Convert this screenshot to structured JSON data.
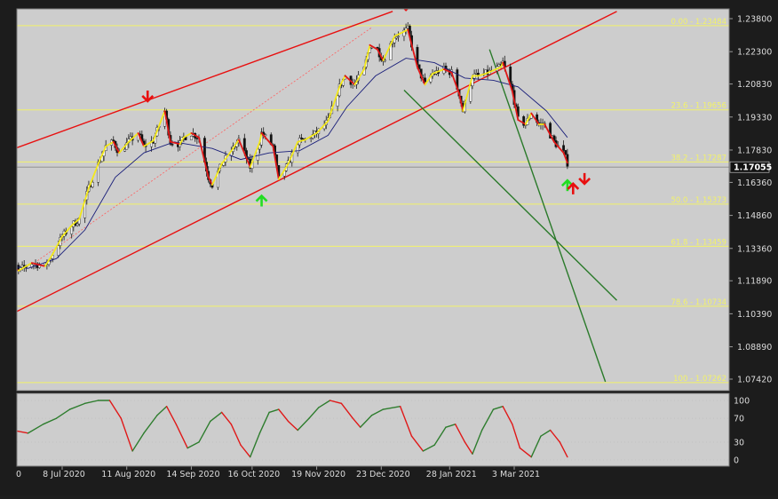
{
  "chart_data": [
    {
      "type": "candlestick",
      "symbol_price_label": "1.17055",
      "last_price": 1.17055,
      "y_ticks": [
        "1.23800",
        "1.22300",
        "1.20830",
        "1.19330",
        "1.17830",
        "1.16360",
        "1.14860",
        "1.13360",
        "1.11890",
        "1.10390",
        "1.08890",
        "1.07420"
      ],
      "x_ticks": [
        {
          "label": "0",
          "date": "2020-06-05"
        },
        {
          "label": "8 Jul 2020",
          "date": "2020-07-08"
        },
        {
          "label": "11 Aug 2020",
          "date": "2020-08-11"
        },
        {
          "label": "14 Sep 2020",
          "date": "2020-09-14"
        },
        {
          "label": "16 Oct 2020",
          "date": "2020-10-16"
        },
        {
          "label": "19 Nov 2020",
          "date": "2020-11-19"
        },
        {
          "label": "23 Dec 2020",
          "date": "2020-12-23"
        },
        {
          "label": "28 Jan 2021",
          "date": "2021-01-28"
        },
        {
          "label": "3 Mar 2021",
          "date": "2021-03-03"
        }
      ],
      "fib_levels": [
        {
          "label": "0.00 - 1.23484",
          "value": 1.23484
        },
        {
          "label": "23.6 - 1.19656",
          "value": 1.19656
        },
        {
          "label": "38.2 - 1.17287",
          "value": 1.17287
        },
        {
          "label": "50.0 - 1.15373",
          "value": 1.15373
        },
        {
          "label": "61.8 - 1.13459",
          "value": 1.13459
        },
        {
          "label": "78.6 - 1.10734",
          "value": 1.10734
        },
        {
          "label": "100 - 1.07262",
          "value": 1.07262
        }
      ],
      "trend_lines": [
        {
          "color": "#e81010",
          "points": [
            [
              "2020-06-05",
              1.1765
            ],
            [
              "2020-12-29",
              1.2413
            ]
          ]
        },
        {
          "color": "#e81010",
          "points": [
            [
              "2020-06-05",
              1.101
            ],
            [
              "2021-04-26",
              1.2413
            ]
          ]
        },
        {
          "color": "#2a7a2a",
          "points": [
            [
              "2021-02-18",
              1.224
            ],
            [
              "2021-04-20",
              1.073
            ]
          ]
        },
        {
          "color": "#2a7a2a",
          "points": [
            [
              "2021-01-04",
              1.2055
            ],
            [
              "2021-04-26",
              1.11
            ]
          ]
        }
      ],
      "dashed_line": {
        "color": "#ff6060",
        "points": [
          [
            "2020-06-25",
            1.128
          ],
          [
            "2020-12-18",
            1.234
          ]
        ]
      },
      "arrows": [
        {
          "direction": "down",
          "color": "#e81010",
          "date": "2020-08-22",
          "price": 1.2005
        },
        {
          "direction": "down",
          "color": "#e81010",
          "date": "2021-01-05",
          "price": 1.242
        },
        {
          "direction": "up",
          "color": "#22dd22",
          "date": "2020-10-21",
          "price": 1.1575
        },
        {
          "direction": "up",
          "color": "#22dd22",
          "date": "2021-03-31",
          "price": 1.1645
        },
        {
          "direction": "up",
          "color": "#e81010",
          "date": "2021-04-03",
          "price": 1.163
        },
        {
          "direction": "down",
          "color": "#e81010",
          "date": "2021-04-09",
          "price": 1.163
        }
      ],
      "price_path": [
        [
          "2020-06-05",
          1.127
        ],
        [
          "2020-06-10",
          1.1265
        ],
        [
          "2020-06-15",
          1.1235
        ],
        [
          "2020-06-22",
          1.127
        ],
        [
          "2020-06-29",
          1.1255
        ],
        [
          "2020-07-03",
          1.131
        ],
        [
          "2020-07-08",
          1.139
        ],
        [
          "2020-07-13",
          1.144
        ],
        [
          "2020-07-17",
          1.147
        ],
        [
          "2020-07-22",
          1.161
        ],
        [
          "2020-07-27",
          1.172
        ],
        [
          "2020-07-31",
          1.18
        ],
        [
          "2020-08-04",
          1.182
        ],
        [
          "2020-08-07",
          1.177
        ],
        [
          "2020-08-12",
          1.182
        ],
        [
          "2020-08-17",
          1.186
        ],
        [
          "2020-08-20",
          1.18
        ],
        [
          "2020-08-25",
          1.1825
        ],
        [
          "2020-08-31",
          1.196
        ],
        [
          "2020-09-03",
          1.182
        ],
        [
          "2020-09-08",
          1.181
        ],
        [
          "2020-09-10",
          1.184
        ],
        [
          "2020-09-14",
          1.186
        ],
        [
          "2020-09-18",
          1.184
        ],
        [
          "2020-09-23",
          1.166
        ],
        [
          "2020-09-25",
          1.1625
        ],
        [
          "2020-09-30",
          1.172
        ],
        [
          "2020-10-06",
          1.179
        ],
        [
          "2020-10-09",
          1.183
        ],
        [
          "2020-10-15",
          1.1705
        ],
        [
          "2020-10-20",
          1.182
        ],
        [
          "2020-10-21",
          1.186
        ],
        [
          "2020-10-27",
          1.18
        ],
        [
          "2020-10-30",
          1.165
        ],
        [
          "2020-11-04",
          1.172
        ],
        [
          "2020-11-09",
          1.182
        ],
        [
          "2020-11-13",
          1.183
        ],
        [
          "2020-11-19",
          1.186
        ],
        [
          "2020-11-25",
          1.1915
        ],
        [
          "2020-12-01",
          1.207
        ],
        [
          "2020-12-04",
          1.212
        ],
        [
          "2020-12-09",
          1.208
        ],
        [
          "2020-12-14",
          1.215
        ],
        [
          "2020-12-17",
          1.226
        ],
        [
          "2020-12-21",
          1.224
        ],
        [
          "2020-12-24",
          1.219
        ],
        [
          "2020-12-30",
          1.23
        ],
        [
          "2021-01-06",
          1.233
        ],
        [
          "2021-01-11",
          1.216
        ],
        [
          "2021-01-15",
          1.208
        ],
        [
          "2021-01-19",
          1.213
        ],
        [
          "2021-01-25",
          1.215
        ],
        [
          "2021-01-29",
          1.2135
        ],
        [
          "2021-02-02",
          1.204
        ],
        [
          "2021-02-04",
          1.196
        ],
        [
          "2021-02-09",
          1.212
        ],
        [
          "2021-02-12",
          1.212
        ],
        [
          "2021-02-16",
          1.213
        ],
        [
          "2021-02-24",
          1.216
        ],
        [
          "2021-02-25",
          1.218
        ],
        [
          "2021-03-02",
          1.205
        ],
        [
          "2021-03-05",
          1.192
        ],
        [
          "2021-03-09",
          1.19
        ],
        [
          "2021-03-12",
          1.195
        ],
        [
          "2021-03-16",
          1.19
        ],
        [
          "2021-03-19",
          1.19
        ],
        [
          "2021-03-24",
          1.182
        ],
        [
          "2021-03-29",
          1.177
        ],
        [
          "2021-03-31",
          1.1725
        ]
      ],
      "ma_path": [
        [
          "2020-06-05",
          1.126
        ],
        [
          "2020-06-20",
          1.1245
        ],
        [
          "2020-07-05",
          1.129
        ],
        [
          "2020-07-20",
          1.142
        ],
        [
          "2020-08-05",
          1.166
        ],
        [
          "2020-08-20",
          1.177
        ],
        [
          "2020-09-05",
          1.182
        ],
        [
          "2020-09-25",
          1.179
        ],
        [
          "2020-10-10",
          1.174
        ],
        [
          "2020-10-25",
          1.177
        ],
        [
          "2020-11-10",
          1.178
        ],
        [
          "2020-11-25",
          1.185
        ],
        [
          "2020-12-05",
          1.198
        ],
        [
          "2020-12-20",
          1.212
        ],
        [
          "2021-01-05",
          1.22
        ],
        [
          "2021-01-20",
          1.218
        ],
        [
          "2021-02-05",
          1.211
        ],
        [
          "2021-02-20",
          1.21
        ],
        [
          "2021-03-05",
          1.207
        ],
        [
          "2021-03-20",
          1.196
        ],
        [
          "2021-03-31",
          1.184
        ]
      ],
      "stoch_ticks": [
        "100",
        "70",
        "30",
        "0"
      ],
      "stoch_levels": [
        100,
        70,
        30,
        0
      ],
      "stoch_path": [
        [
          "2020-06-05",
          40
        ],
        [
          "2020-06-12",
          50
        ],
        [
          "2020-06-20",
          45
        ],
        [
          "2020-06-28",
          60
        ],
        [
          "2020-07-05",
          70
        ],
        [
          "2020-07-12",
          85
        ],
        [
          "2020-07-20",
          95
        ],
        [
          "2020-07-27",
          100
        ],
        [
          "2020-08-02",
          100
        ],
        [
          "2020-08-08",
          70
        ],
        [
          "2020-08-14",
          15
        ],
        [
          "2020-08-20",
          45
        ],
        [
          "2020-08-27",
          75
        ],
        [
          "2020-09-01",
          90
        ],
        [
          "2020-09-06",
          60
        ],
        [
          "2020-09-12",
          20
        ],
        [
          "2020-09-18",
          30
        ],
        [
          "2020-09-24",
          65
        ],
        [
          "2020-09-30",
          80
        ],
        [
          "2020-10-05",
          60
        ],
        [
          "2020-10-10",
          25
        ],
        [
          "2020-10-15",
          5
        ],
        [
          "2020-10-20",
          45
        ],
        [
          "2020-10-25",
          80
        ],
        [
          "2020-10-30",
          85
        ],
        [
          "2020-11-04",
          65
        ],
        [
          "2020-11-09",
          50
        ],
        [
          "2020-11-15",
          70
        ],
        [
          "2020-11-20",
          88
        ],
        [
          "2020-11-26",
          100
        ],
        [
          "2020-12-02",
          95
        ],
        [
          "2020-12-08",
          70
        ],
        [
          "2020-12-12",
          55
        ],
        [
          "2020-12-18",
          75
        ],
        [
          "2020-12-24",
          85
        ],
        [
          "2021-01-02",
          90
        ],
        [
          "2021-01-08",
          40
        ],
        [
          "2021-01-14",
          15
        ],
        [
          "2021-01-20",
          25
        ],
        [
          "2021-01-26",
          55
        ],
        [
          "2021-01-31",
          60
        ],
        [
          "2021-02-05",
          30
        ],
        [
          "2021-02-09",
          10
        ],
        [
          "2021-02-14",
          50
        ],
        [
          "2021-02-20",
          85
        ],
        [
          "2021-02-25",
          90
        ],
        [
          "2021-03-02",
          60
        ],
        [
          "2021-03-06",
          20
        ],
        [
          "2021-03-12",
          5
        ],
        [
          "2021-03-17",
          40
        ],
        [
          "2021-03-22",
          50
        ],
        [
          "2021-03-27",
          30
        ],
        [
          "2021-03-31",
          5
        ]
      ]
    }
  ]
}
